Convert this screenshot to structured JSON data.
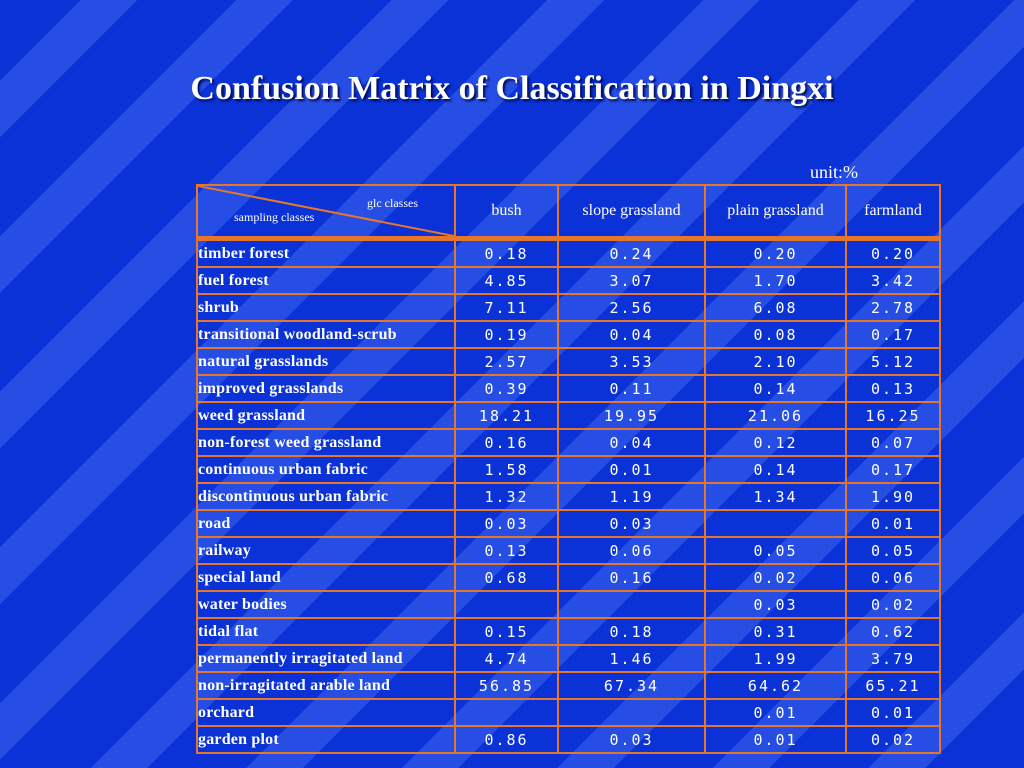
{
  "title": "Confusion Matrix of Classification in Dingxi",
  "unit": "unit:%",
  "header": {
    "glc_label": "glc classes",
    "sampling_label": "sampling classes",
    "columns": [
      "bush",
      "slope grassland",
      "plain grassland",
      "farmland"
    ]
  },
  "rows": [
    {
      "label": "timber forest",
      "values": [
        "0.18",
        "0.24",
        "0.20",
        "0.20"
      ]
    },
    {
      "label": "fuel forest",
      "values": [
        "4.85",
        "3.07",
        "1.70",
        "3.42"
      ]
    },
    {
      "label": "shrub",
      "values": [
        "7.11",
        "2.56",
        "6.08",
        "2.78"
      ]
    },
    {
      "label": "transitional woodland-scrub",
      "values": [
        "0.19",
        "0.04",
        "0.08",
        "0.17"
      ]
    },
    {
      "label": "natural grasslands",
      "values": [
        "2.57",
        "3.53",
        "2.10",
        "5.12"
      ]
    },
    {
      "label": "improved grasslands",
      "values": [
        "0.39",
        "0.11",
        "0.14",
        "0.13"
      ]
    },
    {
      "label": "weed grassland",
      "values": [
        "18.21",
        "19.95",
        "21.06",
        "16.25"
      ]
    },
    {
      "label": "non-forest weed grassland",
      "values": [
        "0.16",
        "0.04",
        "0.12",
        "0.07"
      ]
    },
    {
      "label": "continuous urban fabric",
      "values": [
        "1.58",
        "0.01",
        "0.14",
        "0.17"
      ]
    },
    {
      "label": "discontinuous urban fabric",
      "values": [
        "1.32",
        "1.19",
        "1.34",
        "1.90"
      ]
    },
    {
      "label": "road",
      "values": [
        "0.03",
        "0.03",
        "",
        "0.01"
      ]
    },
    {
      "label": "railway",
      "values": [
        "0.13",
        "0.06",
        "0.05",
        "0.05"
      ]
    },
    {
      "label": "special land",
      "values": [
        "0.68",
        "0.16",
        "0.02",
        "0.06"
      ]
    },
    {
      "label": "water bodies",
      "values": [
        "",
        "",
        "0.03",
        "0.02"
      ]
    },
    {
      "label": "tidal flat",
      "values": [
        "0.15",
        "0.18",
        "0.31",
        "0.62"
      ]
    },
    {
      "label": "permanently irragitated land",
      "values": [
        "4.74",
        "1.46",
        "1.99",
        "3.79"
      ]
    },
    {
      "label": "non-irragitated arable land",
      "values": [
        "56.85",
        "67.34",
        "64.62",
        "65.21"
      ]
    },
    {
      "label": "orchard",
      "values": [
        "",
        "",
        "0.01",
        "0.01"
      ]
    },
    {
      "label": "garden plot",
      "values": [
        "0.86",
        "0.03",
        "0.01",
        "0.02"
      ]
    }
  ],
  "colors": {
    "background": "#0a32d6",
    "grid": "#e5762b",
    "text": "#ffffff"
  }
}
